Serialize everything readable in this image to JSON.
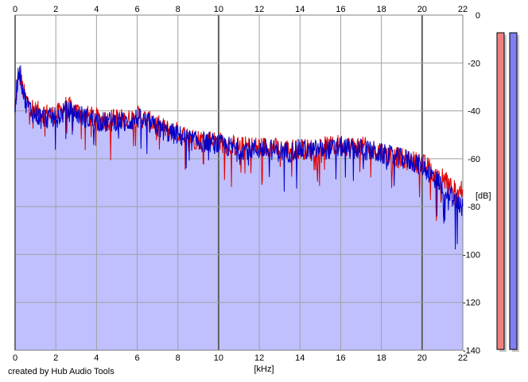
{
  "chart_data": {
    "type": "area",
    "xlabel": "[kHz]",
    "ylabel": "[dB]",
    "xlim": [
      0,
      22
    ],
    "ylim": [
      -140,
      0
    ],
    "x_ticks": [
      "0",
      "2",
      "4",
      "6",
      "8",
      "10",
      "12",
      "14",
      "16",
      "18",
      "20",
      "22"
    ],
    "y_ticks": [
      "0",
      "-20",
      "-40",
      "-60",
      "-80",
      "-100",
      "-120",
      "-140"
    ],
    "grid": true,
    "series": [
      {
        "color": "#e00000",
        "x": [
          0.0,
          0.1,
          0.2,
          0.3,
          0.5,
          0.8,
          1.0,
          1.5,
          2.0,
          2.5,
          3.0,
          3.5,
          4.0,
          4.5,
          5.0,
          5.5,
          6.0,
          6.5,
          7.0,
          7.5,
          8.0,
          8.5,
          9.0,
          9.5,
          10.0,
          10.5,
          11.0,
          11.5,
          12.0,
          12.5,
          13.0,
          13.5,
          14.0,
          14.5,
          15.0,
          15.5,
          16.0,
          16.5,
          17.0,
          17.5,
          18.0,
          18.5,
          19.0,
          19.5,
          20.0,
          20.5,
          21.0,
          21.5,
          22.0
        ],
        "values": [
          -40,
          -30,
          -24,
          -28,
          -35,
          -38,
          -40,
          -41,
          -42,
          -38,
          -40,
          -42,
          -43,
          -44,
          -43,
          -44,
          -42,
          -44,
          -46,
          -48,
          -49,
          -51,
          -52,
          -52,
          -53,
          -54,
          -55,
          -55,
          -55,
          -55,
          -56,
          -56,
          -56,
          -56,
          -55,
          -55,
          -54,
          -55,
          -55,
          -56,
          -57,
          -59,
          -60,
          -61,
          -62,
          -65,
          -68,
          -72,
          -74
        ]
      },
      {
        "color": "#0000c8",
        "x": [
          0.0,
          0.1,
          0.2,
          0.3,
          0.5,
          0.8,
          1.0,
          1.5,
          2.0,
          2.5,
          3.0,
          3.5,
          4.0,
          4.5,
          5.0,
          5.5,
          6.0,
          6.5,
          7.0,
          7.5,
          8.0,
          8.5,
          9.0,
          9.5,
          10.0,
          10.5,
          11.0,
          11.5,
          12.0,
          12.5,
          13.0,
          13.5,
          14.0,
          14.5,
          15.0,
          15.5,
          16.0,
          16.5,
          17.0,
          17.5,
          18.0,
          18.5,
          19.0,
          19.5,
          20.0,
          20.5,
          21.0,
          21.5,
          22.0
        ],
        "values": [
          -38,
          -28,
          -22,
          -27,
          -36,
          -40,
          -42,
          -43,
          -43,
          -40,
          -41,
          -43,
          -44,
          -45,
          -44,
          -45,
          -43,
          -45,
          -47,
          -49,
          -50,
          -52,
          -53,
          -53,
          -54,
          -55,
          -56,
          -56,
          -56,
          -56,
          -57,
          -57,
          -56,
          -57,
          -56,
          -56,
          -55,
          -56,
          -56,
          -57,
          -58,
          -59,
          -60,
          -61,
          -63,
          -67,
          -71,
          -76,
          -80
        ]
      }
    ],
    "fill_color": "#c0c0ff",
    "level_meters": [
      {
        "color": "#f08080",
        "level": 0.975
      },
      {
        "color": "#8080f0",
        "level": 0.975
      }
    ]
  },
  "credit": "created by Hub Audio Tools"
}
